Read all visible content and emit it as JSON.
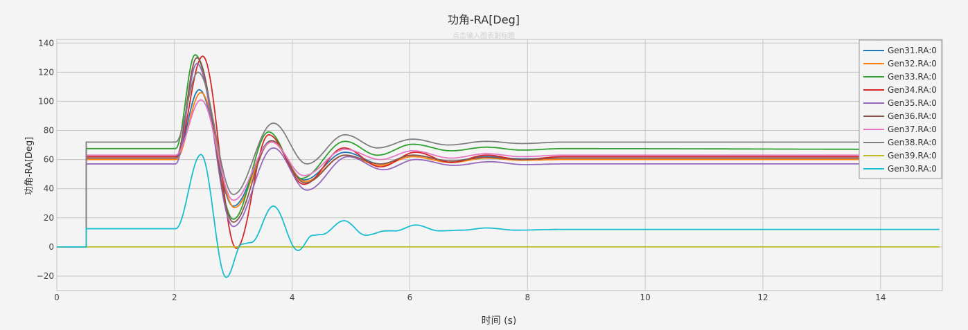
{
  "chart_data": {
    "type": "line",
    "title": "功角-RA[Deg]",
    "subtitle": "点击输入图表副标题",
    "xlabel": "时间 (s)",
    "ylabel": "功角-RA[Deg]",
    "xlim": [
      0,
      15.05
    ],
    "ylim": [
      -30,
      142.5
    ],
    "xticks": [
      0,
      2,
      4,
      6,
      8,
      10,
      12,
      14
    ],
    "yticks": [
      -20,
      0,
      20,
      40,
      60,
      80,
      100,
      120,
      140
    ],
    "grid": true,
    "legend": "top-right",
    "series": [
      {
        "name": "Gen31.RA:0",
        "color": "#1f77b4",
        "base": 61,
        "points": [
          [
            2.42,
            108
          ],
          [
            3.0,
            28
          ],
          [
            3.65,
            73
          ],
          [
            4.2,
            46
          ],
          [
            4.9,
            65
          ],
          [
            5.5,
            57
          ],
          [
            6.05,
            63
          ],
          [
            6.7,
            59
          ],
          [
            7.3,
            62
          ],
          [
            7.9,
            60.5
          ],
          [
            8.6,
            61
          ],
          [
            15,
            61
          ]
        ]
      },
      {
        "name": "Gen32.RA:0",
        "color": "#ff7f0e",
        "base": 60,
        "points": [
          [
            2.45,
            106
          ],
          [
            3.02,
            27
          ],
          [
            3.65,
            72
          ],
          [
            4.22,
            45
          ],
          [
            4.9,
            63
          ],
          [
            5.5,
            56
          ],
          [
            6.05,
            62
          ],
          [
            6.7,
            58
          ],
          [
            7.3,
            61
          ],
          [
            7.9,
            59.5
          ],
          [
            8.6,
            60
          ],
          [
            15,
            60
          ]
        ]
      },
      {
        "name": "Gen33.RA:0",
        "color": "#2ca02c",
        "base": 67.5,
        "points": [
          [
            2.35,
            132
          ],
          [
            3.0,
            19
          ],
          [
            3.6,
            79
          ],
          [
            4.15,
            47
          ],
          [
            4.9,
            72.5
          ],
          [
            5.45,
            63
          ],
          [
            6.05,
            70.5
          ],
          [
            6.7,
            66
          ],
          [
            7.3,
            68.5
          ],
          [
            7.9,
            66.5
          ],
          [
            8.6,
            67.5
          ],
          [
            15,
            67
          ]
        ]
      },
      {
        "name": "Gen34.RA:0",
        "color": "#d62728",
        "base": 62,
        "points": [
          [
            2.48,
            131
          ],
          [
            3.05,
            -1
          ],
          [
            3.6,
            77
          ],
          [
            4.2,
            43
          ],
          [
            4.88,
            68
          ],
          [
            5.5,
            55
          ],
          [
            6.1,
            65
          ],
          [
            6.7,
            58
          ],
          [
            7.3,
            63
          ],
          [
            7.9,
            60
          ],
          [
            8.6,
            62
          ],
          [
            15,
            62
          ]
        ]
      },
      {
        "name": "Gen35.RA:0",
        "color": "#9467bd",
        "base": 57,
        "points": [
          [
            2.38,
            126
          ],
          [
            3.0,
            14
          ],
          [
            3.68,
            68
          ],
          [
            4.25,
            39
          ],
          [
            4.95,
            62
          ],
          [
            5.55,
            53
          ],
          [
            6.1,
            60
          ],
          [
            6.75,
            56
          ],
          [
            7.35,
            58.5
          ],
          [
            7.95,
            56.5
          ],
          [
            8.6,
            57
          ],
          [
            15,
            57
          ]
        ]
      },
      {
        "name": "Gen36.RA:0",
        "color": "#8c564b",
        "base": 61,
        "points": [
          [
            2.38,
            130
          ],
          [
            3.0,
            17
          ],
          [
            3.65,
            73
          ],
          [
            4.22,
            44
          ],
          [
            4.9,
            63
          ],
          [
            5.5,
            57
          ],
          [
            6.05,
            63
          ],
          [
            6.7,
            59
          ],
          [
            7.3,
            61.5
          ],
          [
            7.9,
            60
          ],
          [
            8.6,
            61
          ],
          [
            15,
            61
          ]
        ]
      },
      {
        "name": "Gen37.RA:0",
        "color": "#e377c2",
        "base": 63,
        "points": [
          [
            2.45,
            101
          ],
          [
            3.0,
            32
          ],
          [
            3.65,
            72
          ],
          [
            4.2,
            49
          ],
          [
            4.9,
            67
          ],
          [
            5.5,
            60
          ],
          [
            6.05,
            66
          ],
          [
            6.7,
            61
          ],
          [
            7.3,
            64
          ],
          [
            7.9,
            62
          ],
          [
            8.6,
            63
          ],
          [
            15,
            63
          ]
        ]
      },
      {
        "name": "Gen38.RA:0",
        "color": "#7f7f7f",
        "base": 72,
        "points": [
          [
            2.4,
            120
          ],
          [
            3.0,
            36
          ],
          [
            3.68,
            85
          ],
          [
            4.25,
            57
          ],
          [
            4.9,
            77
          ],
          [
            5.45,
            68
          ],
          [
            6.05,
            74
          ],
          [
            6.65,
            70
          ],
          [
            7.3,
            72.5
          ],
          [
            7.9,
            71
          ],
          [
            8.6,
            72
          ],
          [
            15,
            72
          ]
        ]
      },
      {
        "name": "Gen39.RA:0",
        "color": "#bcbd22",
        "base": 0,
        "points": [
          [
            15,
            0
          ]
        ]
      },
      {
        "name": "Gen30.RA:0",
        "color": "#17becf",
        "base": 12.5,
        "points": [
          [
            2.45,
            63.5
          ],
          [
            2.88,
            -21
          ],
          [
            3.15,
            2
          ],
          [
            3.3,
            3
          ],
          [
            3.68,
            28
          ],
          [
            4.1,
            -2.5
          ],
          [
            4.35,
            8
          ],
          [
            4.5,
            8.5
          ],
          [
            4.88,
            18
          ],
          [
            5.25,
            8
          ],
          [
            5.6,
            11
          ],
          [
            5.75,
            11
          ],
          [
            6.1,
            15
          ],
          [
            6.5,
            11
          ],
          [
            6.9,
            11.5
          ],
          [
            7.3,
            13
          ],
          [
            7.8,
            11.5
          ],
          [
            8.6,
            12
          ],
          [
            15,
            12
          ]
        ]
      }
    ]
  }
}
